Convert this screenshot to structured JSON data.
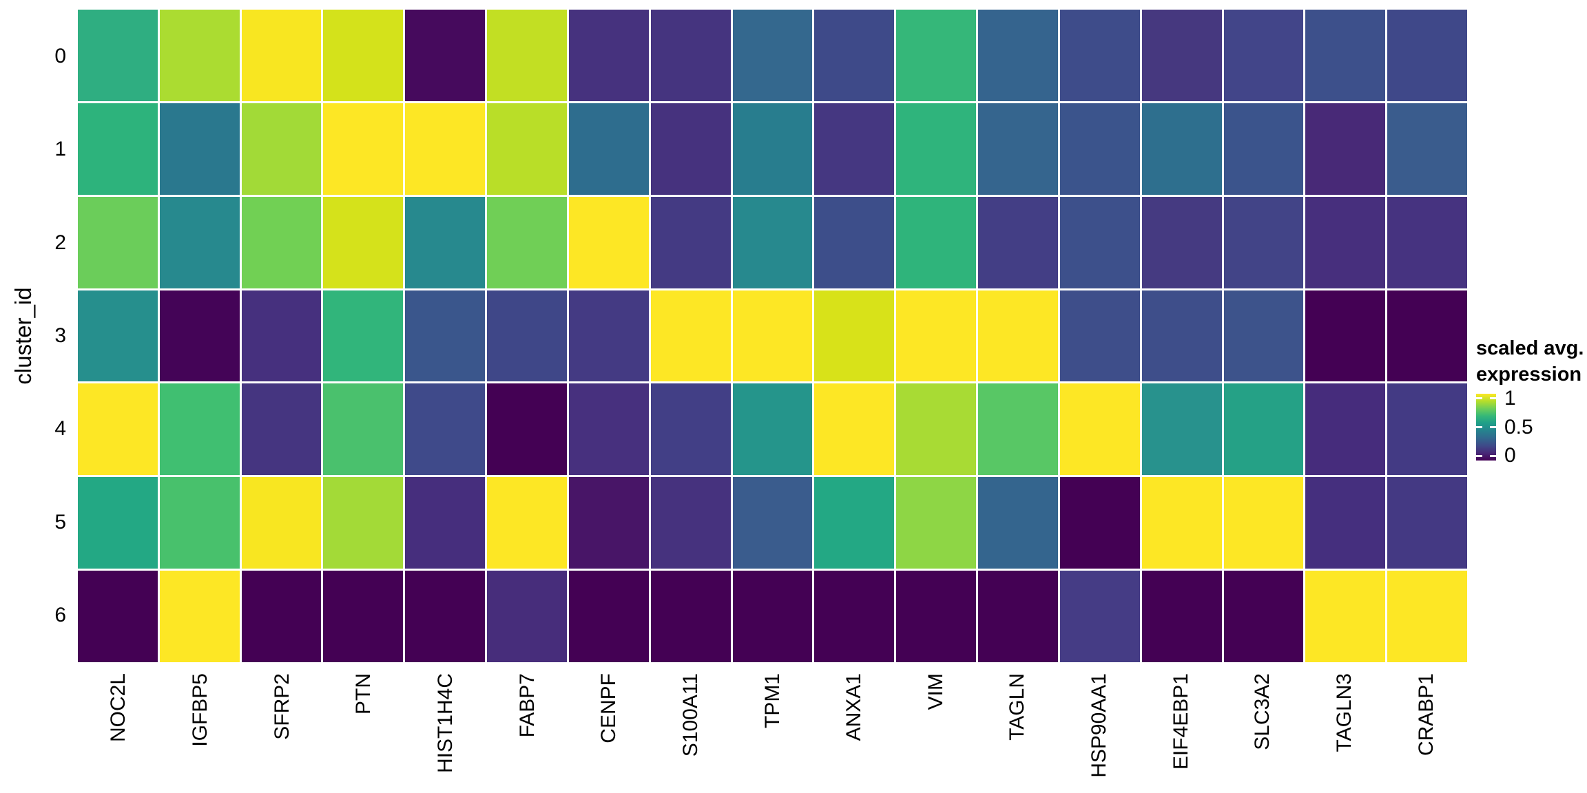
{
  "figure": {
    "background": "#ffffff",
    "grid_line_color": "#ffffff",
    "legend": {
      "title_line1": "scaled avg.",
      "title_line2": "expression",
      "ticks": [
        {
          "label": "1",
          "value": 1
        },
        {
          "label": "0.5",
          "value": 0.5
        },
        {
          "label": "0",
          "value": 0
        }
      ],
      "colorbar_range": [
        -0.08,
        1.08
      ],
      "gradient_bottom_to_top": [
        "#440154",
        "#482878",
        "#3e4a89",
        "#31688e",
        "#26828e",
        "#1f9e89",
        "#35b779",
        "#6ece58",
        "#b5de2b",
        "#fde725"
      ]
    }
  },
  "chart_data": {
    "type": "heatmap",
    "title": "",
    "xlabel": "",
    "ylabel": "cluster_id",
    "legend_title": "scaled avg. expression",
    "colorscale": "viridis",
    "value_range": [
      0,
      1
    ],
    "grid": false,
    "legend_position": "right",
    "x_categories": [
      "NOC2L",
      "IGFBP5",
      "SFRP2",
      "PTN",
      "HIST1H4C",
      "FABP7",
      "CENPF",
      "S100A11",
      "TPM1",
      "ANXA1",
      "VIM",
      "TAGLN",
      "HSP90AA1",
      "EIF4EBP1",
      "SLC3A2",
      "TAGLN3",
      "CRABP1"
    ],
    "y_categories": [
      "0",
      "1",
      "2",
      "3",
      "4",
      "5",
      "6"
    ],
    "values": [
      [
        0.62,
        0.87,
        0.98,
        0.92,
        0.04,
        0.9,
        0.12,
        0.13,
        0.33,
        0.22,
        0.65,
        0.36,
        0.24,
        0.12,
        0.19,
        0.26,
        0.21
      ],
      [
        0.63,
        0.42,
        0.85,
        1.0,
        1.0,
        0.88,
        0.38,
        0.12,
        0.44,
        0.14,
        0.64,
        0.36,
        0.29,
        0.4,
        0.29,
        0.1,
        0.31
      ],
      [
        0.76,
        0.48,
        0.77,
        0.92,
        0.48,
        0.77,
        1.0,
        0.16,
        0.48,
        0.25,
        0.64,
        0.17,
        0.26,
        0.15,
        0.18,
        0.11,
        0.13
      ],
      [
        0.52,
        0.0,
        0.11,
        0.64,
        0.29,
        0.2,
        0.16,
        1.0,
        1.0,
        0.92,
        1.0,
        1.0,
        0.24,
        0.24,
        0.27,
        0.0,
        0.0
      ],
      [
        1.0,
        0.68,
        0.13,
        0.7,
        0.22,
        0.0,
        0.11,
        0.17,
        0.55,
        1.0,
        0.86,
        0.73,
        1.0,
        0.52,
        0.58,
        0.1,
        0.16
      ],
      [
        0.6,
        0.7,
        0.98,
        0.85,
        0.11,
        1.0,
        0.05,
        0.12,
        0.31,
        0.6,
        0.81,
        0.36,
        0.0,
        1.0,
        1.0,
        0.11,
        0.16
      ],
      [
        0.0,
        1.0,
        0.0,
        0.0,
        0.0,
        0.1,
        0.0,
        0.0,
        0.0,
        0.0,
        0.0,
        0.0,
        0.14,
        0.0,
        0.0,
        1.0,
        1.0
      ]
    ],
    "cell_colors": [
      [
        "#2fae81",
        "#abdc31",
        "#f8e621",
        "#d4e21b",
        "#460a5d",
        "#c2df23",
        "#46327e",
        "#45347f",
        "#34688e",
        "#3e4a89",
        "#35b779",
        "#35648e",
        "#3e4c8a",
        "#46387f",
        "#424589",
        "#3d508b",
        "#3f4889"
      ],
      [
        "#2db37c",
        "#2a788e",
        "#a2da37",
        "#fde725",
        "#fde725",
        "#b9de28",
        "#2e6d8e",
        "#46327e",
        "#287d8e",
        "#453781",
        "#2fb47c",
        "#35658e",
        "#3b548c",
        "#2e6f8e",
        "#3b548c",
        "#482977",
        "#3a5c8d"
      ],
      [
        "#6bcd5a",
        "#27898e",
        "#71d054",
        "#d5e21b",
        "#27898e",
        "#70cf56",
        "#fde725",
        "#443a83",
        "#27898e",
        "#3d4e8a",
        "#2fb47b",
        "#433e85",
        "#3d508b",
        "#453a81",
        "#424487",
        "#472f7d",
        "#463380"
      ],
      [
        "#268f8d",
        "#440457",
        "#46307e",
        "#31b57b",
        "#3a568c",
        "#3f4788",
        "#443a83",
        "#fde725",
        "#fde725",
        "#d8e219",
        "#fde725",
        "#fde725",
        "#3e4e8a",
        "#3e4e8a",
        "#3d538b",
        "#440154",
        "#440154"
      ],
      [
        "#fde725",
        "#40bf71",
        "#453580",
        "#4ac16d",
        "#3f4a8a",
        "#440154",
        "#47307e",
        "#423f86",
        "#25958b",
        "#fde725",
        "#a8db34",
        "#58c765",
        "#fde725",
        "#28928d",
        "#25a186",
        "#462c7c",
        "#433a84"
      ],
      [
        "#23a884",
        "#48c16c",
        "#f8e621",
        "#a3da37",
        "#462e7d",
        "#fde725",
        "#481567",
        "#46327e",
        "#3a5c8d",
        "#23a884",
        "#8ed645",
        "#34658e",
        "#440154",
        "#fde725",
        "#fde725",
        "#452f7e",
        "#443983"
      ],
      [
        "#440154",
        "#fde725",
        "#440154",
        "#440154",
        "#440154",
        "#472d7b",
        "#440154",
        "#440154",
        "#440154",
        "#440154",
        "#440154",
        "#440154",
        "#453c85",
        "#440154",
        "#440154",
        "#fde725",
        "#fde725"
      ]
    ]
  }
}
